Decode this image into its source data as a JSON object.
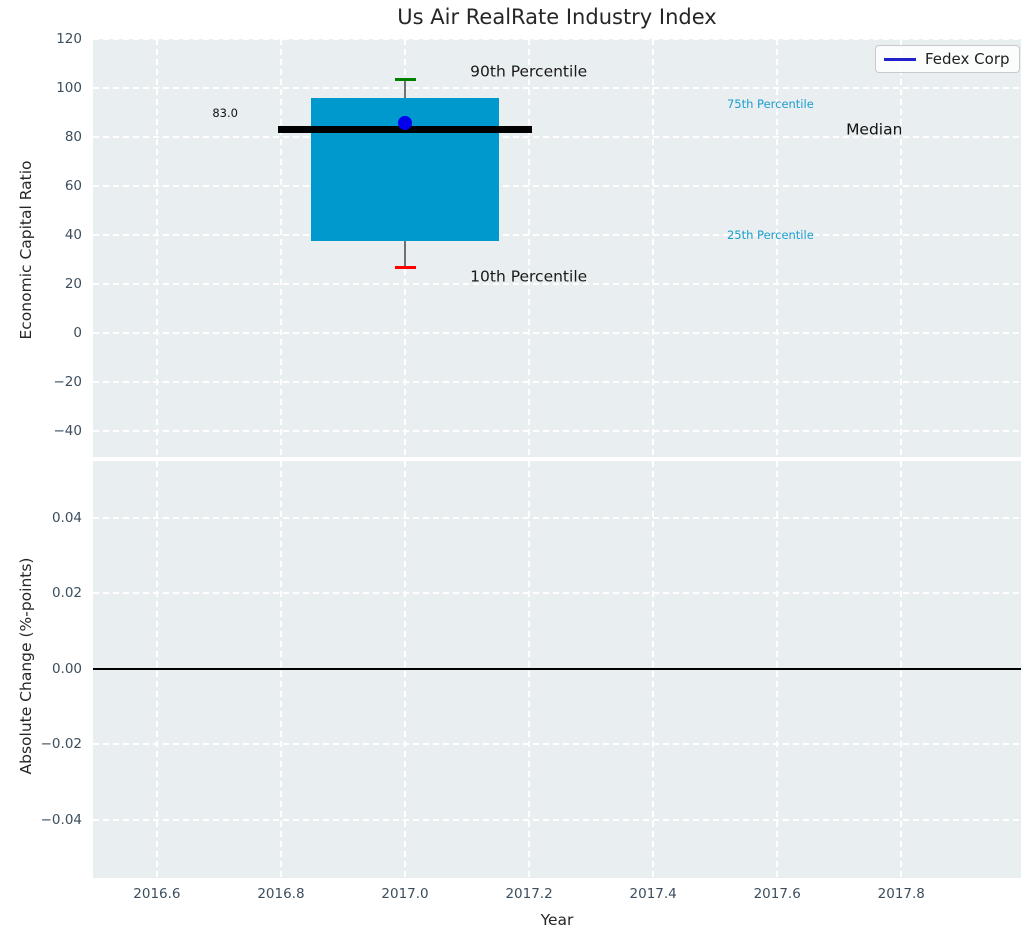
{
  "title": "Us Air RealRate Industry Index",
  "legend": {
    "label": "Fedex Corp",
    "line_color": "#2222cc"
  },
  "colors": {
    "plot_background": "#e9eef0",
    "grid": "#ffffff",
    "tick_label": "#3c4e5e",
    "axis_label": "#262626",
    "box_fill": "#0099cd",
    "median_line": "#000000",
    "mean_marker": "#0000ee",
    "p90_cap": "#008000",
    "p10_cap": "#ff0000",
    "whisker": "#707070",
    "percentile_label": "#1a9ecf",
    "legend_line": "#2222cc",
    "zero_line": "#000000"
  },
  "chart_data": [
    {
      "type": "boxplot",
      "title": "Us Air RealRate Industry Index",
      "ylabel": "Economic Capital Ratio",
      "xlim": [
        2016.497,
        2017.993
      ],
      "ylim": [
        -50.6,
        120
      ],
      "grid": true,
      "xgridlines": [
        2016.6,
        2016.8,
        2017.0,
        2017.2,
        2017.4,
        2017.6,
        2017.8
      ],
      "yticks": [
        {
          "value": 120,
          "label": "120"
        },
        {
          "value": 100,
          "label": "100"
        },
        {
          "value": 80,
          "label": "80"
        },
        {
          "value": 60,
          "label": "60"
        },
        {
          "value": 40,
          "label": "40"
        },
        {
          "value": 20,
          "label": "20"
        },
        {
          "value": 0,
          "label": "0"
        },
        {
          "value": -20,
          "label": "−20"
        },
        {
          "value": -40,
          "label": "−40"
        }
      ],
      "series": [
        {
          "name": "Fedex Corp",
          "x": 2017.0,
          "p10": 26.6,
          "p25": 37.5,
          "median": 83.0,
          "p75": 96.0,
          "p90": 103.3,
          "mean": 85.8,
          "median_value_label": "83.0",
          "box_width_years": 0.303,
          "median_line_width_years": 0.411,
          "box_color": "#0099cd",
          "median_color": "#000000",
          "mean_marker_color": "#0000ee",
          "p90_cap_color": "#008000",
          "p10_cap_color": "#ff0000",
          "whisker_color": "#707070"
        }
      ],
      "annotations": [
        {
          "text": "90th Percentile",
          "x": 2017.105,
          "y": 106.6,
          "color": "#1a1a1a",
          "size": 15.5,
          "align": "left"
        },
        {
          "text": "10th Percentile",
          "x": 2017.105,
          "y": 22.9,
          "color": "#1a1a1a",
          "size": 15.5,
          "align": "left"
        },
        {
          "text": "75th Percentile",
          "x": 2017.519,
          "y": 93.1,
          "color": "#1a9ecf",
          "size": 11.5,
          "align": "left"
        },
        {
          "text": "25th Percentile",
          "x": 2017.519,
          "y": 39.6,
          "color": "#1a9ecf",
          "size": 11.5,
          "align": "left"
        },
        {
          "text": "Median",
          "x": 2017.711,
          "y": 82.7,
          "color": "#111111",
          "size": 15.5,
          "align": "left"
        },
        {
          "text": "83.0",
          "x": 2016.71,
          "y": 89.4,
          "color": "#111111",
          "size": 11.5,
          "align": "center"
        }
      ],
      "legend_entries": [
        {
          "label": "Fedex Corp",
          "line_color": "#2222cc"
        }
      ]
    },
    {
      "type": "line",
      "ylabel": "Absolute Change (%-points)",
      "xlabel": "Year",
      "xlim": [
        2016.497,
        2017.993
      ],
      "ylim": [
        -0.0554,
        0.0551
      ],
      "grid": true,
      "zero_line": 0.0,
      "yticks": [
        {
          "value": 0.04,
          "label": "0.04"
        },
        {
          "value": 0.02,
          "label": "0.02"
        },
        {
          "value": 0.0,
          "label": "0.00"
        },
        {
          "value": -0.02,
          "label": "−0.02"
        },
        {
          "value": -0.04,
          "label": "−0.04"
        }
      ],
      "xticks": [
        {
          "value": 2016.6,
          "label": "2016.6"
        },
        {
          "value": 2016.8,
          "label": "2016.8"
        },
        {
          "value": 2017.0,
          "label": "2017.0"
        },
        {
          "value": 2017.2,
          "label": "2017.2"
        },
        {
          "value": 2017.4,
          "label": "2017.4"
        },
        {
          "value": 2017.6,
          "label": "2017.6"
        },
        {
          "value": 2017.8,
          "label": "2017.8"
        }
      ]
    }
  ]
}
